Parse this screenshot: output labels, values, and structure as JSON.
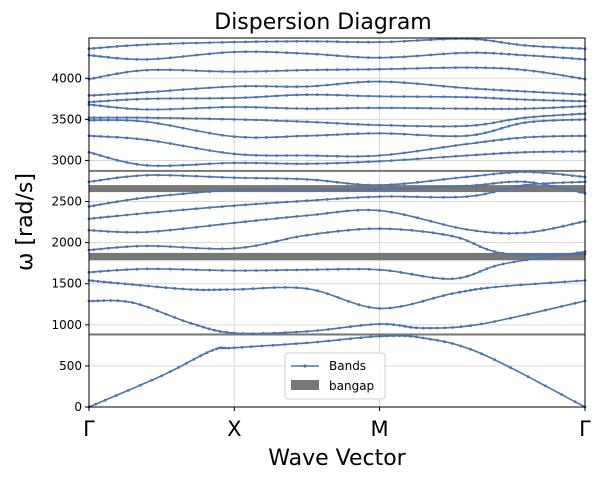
{
  "chart_data": {
    "type": "line",
    "title": "Dispersion Diagram",
    "xlabel": "Wave Vector",
    "ylabel": "ω [rad/s]",
    "ylim": [
      0,
      4490
    ],
    "yticks": [
      0,
      500,
      1000,
      1500,
      2000,
      2500,
      3000,
      3500,
      4000
    ],
    "x_ticks": [
      {
        "label": "Γ",
        "position": 0
      },
      {
        "label": "X",
        "position": 1
      },
      {
        "label": "M",
        "position": 2
      },
      {
        "label": "Γ",
        "position": 3.414
      }
    ],
    "xlim": [
      0,
      3.414
    ],
    "grid": true,
    "legend": {
      "placement": "lower-center",
      "entries": [
        {
          "label": "Bands",
          "kind": "line-marker",
          "color": "#4c72b0"
        },
        {
          "label": "bangap",
          "kind": "patch",
          "color": "#777777"
        }
      ]
    },
    "band_color": "#4c72b0",
    "bandgap_color": "#777777",
    "bandgaps": [
      {
        "low": 870,
        "high": 895
      },
      {
        "low": 1785,
        "high": 1875
      },
      {
        "low": 2615,
        "high": 2700
      },
      {
        "low": 2865,
        "high": 2885
      }
    ],
    "series": [
      {
        "points": [
          [
            0,
            0
          ],
          [
            0.5,
            380
          ],
          [
            0.85,
            690
          ],
          [
            1,
            720
          ],
          [
            1.5,
            780
          ],
          [
            2,
            860
          ],
          [
            2.3,
            840
          ],
          [
            2.7,
            650
          ],
          [
            3.414,
            0
          ]
        ]
      },
      {
        "points": [
          [
            0,
            1290
          ],
          [
            0.3,
            1270
          ],
          [
            0.7,
            1020
          ],
          [
            1,
            900
          ],
          [
            1.5,
            920
          ],
          [
            2,
            1010
          ],
          [
            2.3,
            960
          ],
          [
            2.7,
            1010
          ],
          [
            3.414,
            1290
          ]
        ]
      },
      {
        "points": [
          [
            0,
            1540
          ],
          [
            0.3,
            1490
          ],
          [
            0.7,
            1430
          ],
          [
            1,
            1430
          ],
          [
            1.5,
            1440
          ],
          [
            2,
            1200
          ],
          [
            2.5,
            1380
          ],
          [
            2.8,
            1460
          ],
          [
            3.414,
            1540
          ]
        ]
      },
      {
        "points": [
          [
            0,
            1640
          ],
          [
            0.4,
            1680
          ],
          [
            1,
            1660
          ],
          [
            1.5,
            1670
          ],
          [
            2,
            1670
          ],
          [
            2.5,
            1560
          ],
          [
            2.85,
            1740
          ],
          [
            3.414,
            1890
          ]
        ]
      },
      {
        "points": [
          [
            0,
            1910
          ],
          [
            0.4,
            1960
          ],
          [
            1,
            1930
          ],
          [
            1.5,
            2090
          ],
          [
            2,
            2170
          ],
          [
            2.5,
            2080
          ],
          [
            2.85,
            1870
          ],
          [
            3.414,
            1860
          ]
        ]
      },
      {
        "points": [
          [
            0,
            2150
          ],
          [
            0.4,
            2130
          ],
          [
            1,
            2240
          ],
          [
            1.5,
            2330
          ],
          [
            2,
            2390
          ],
          [
            2.6,
            2160
          ],
          [
            3.0,
            2120
          ],
          [
            3.414,
            2260
          ]
        ]
      },
      {
        "points": [
          [
            0,
            2290
          ],
          [
            0.4,
            2360
          ],
          [
            1,
            2450
          ],
          [
            1.5,
            2510
          ],
          [
            2,
            2560
          ],
          [
            2.6,
            2560
          ],
          [
            3.0,
            2700
          ],
          [
            3.414,
            2740
          ]
        ]
      },
      {
        "points": [
          [
            0,
            2440
          ],
          [
            0.4,
            2550
          ],
          [
            1,
            2640
          ],
          [
            1.5,
            2640
          ],
          [
            2,
            2650
          ],
          [
            2.6,
            2690
          ],
          [
            3.0,
            2740
          ],
          [
            3.414,
            2600
          ]
        ]
      },
      {
        "points": [
          [
            0,
            2740
          ],
          [
            0.4,
            2820
          ],
          [
            1,
            2790
          ],
          [
            1.5,
            2770
          ],
          [
            2,
            2700
          ],
          [
            2.6,
            2800
          ],
          [
            3.0,
            2860
          ],
          [
            3.414,
            2800
          ]
        ]
      },
      {
        "points": [
          [
            0,
            3100
          ],
          [
            0.4,
            2940
          ],
          [
            1,
            2970
          ],
          [
            1.5,
            2960
          ],
          [
            2,
            2990
          ],
          [
            2.6,
            3060
          ],
          [
            3.0,
            3100
          ],
          [
            3.414,
            3110
          ]
        ]
      },
      {
        "points": [
          [
            0,
            3300
          ],
          [
            0.4,
            3250
          ],
          [
            1,
            3080
          ],
          [
            1.5,
            3060
          ],
          [
            2,
            3060
          ],
          [
            2.6,
            3200
          ],
          [
            3.0,
            3280
          ],
          [
            3.414,
            3300
          ]
        ]
      },
      {
        "points": [
          [
            0,
            3490
          ],
          [
            0.4,
            3470
          ],
          [
            1,
            3290
          ],
          [
            1.5,
            3300
          ],
          [
            2,
            3330
          ],
          [
            2.6,
            3300
          ],
          [
            3.0,
            3460
          ],
          [
            3.414,
            3500
          ]
        ]
      },
      {
        "points": [
          [
            0,
            3520
          ],
          [
            0.4,
            3520
          ],
          [
            1,
            3500
          ],
          [
            1.5,
            3470
          ],
          [
            2,
            3430
          ],
          [
            2.6,
            3420
          ],
          [
            3.0,
            3520
          ],
          [
            3.414,
            3570
          ]
        ]
      },
      {
        "points": [
          [
            0,
            3680
          ],
          [
            0.4,
            3620
          ],
          [
            1,
            3650
          ],
          [
            1.5,
            3630
          ],
          [
            2,
            3640
          ],
          [
            2.6,
            3630
          ],
          [
            3.0,
            3630
          ],
          [
            3.414,
            3660
          ]
        ]
      },
      {
        "points": [
          [
            0,
            3710
          ],
          [
            0.4,
            3750
          ],
          [
            1,
            3760
          ],
          [
            1.5,
            3800
          ],
          [
            2,
            3780
          ],
          [
            2.6,
            3770
          ],
          [
            3.0,
            3740
          ],
          [
            3.414,
            3720
          ]
        ]
      },
      {
        "points": [
          [
            0,
            3790
          ],
          [
            0.4,
            3830
          ],
          [
            1,
            3900
          ],
          [
            1.5,
            3900
          ],
          [
            2,
            3960
          ],
          [
            2.6,
            3880
          ],
          [
            3.0,
            3840
          ],
          [
            3.414,
            3800
          ]
        ]
      },
      {
        "points": [
          [
            0,
            3990
          ],
          [
            0.4,
            4100
          ],
          [
            1,
            4080
          ],
          [
            1.5,
            4100
          ],
          [
            2,
            4110
          ],
          [
            2.6,
            4130
          ],
          [
            3.0,
            4100
          ],
          [
            3.414,
            3990
          ]
        ]
      },
      {
        "points": [
          [
            0,
            4280
          ],
          [
            0.4,
            4230
          ],
          [
            1,
            4320
          ],
          [
            1.5,
            4300
          ],
          [
            2,
            4250
          ],
          [
            2.6,
            4310
          ],
          [
            3.0,
            4280
          ],
          [
            3.414,
            4230
          ]
        ]
      },
      {
        "points": [
          [
            0,
            4360
          ],
          [
            0.4,
            4410
          ],
          [
            1,
            4440
          ],
          [
            1.5,
            4450
          ],
          [
            2,
            4440
          ],
          [
            2.6,
            4480
          ],
          [
            3.0,
            4400
          ],
          [
            3.414,
            4360
          ]
        ]
      }
    ]
  }
}
